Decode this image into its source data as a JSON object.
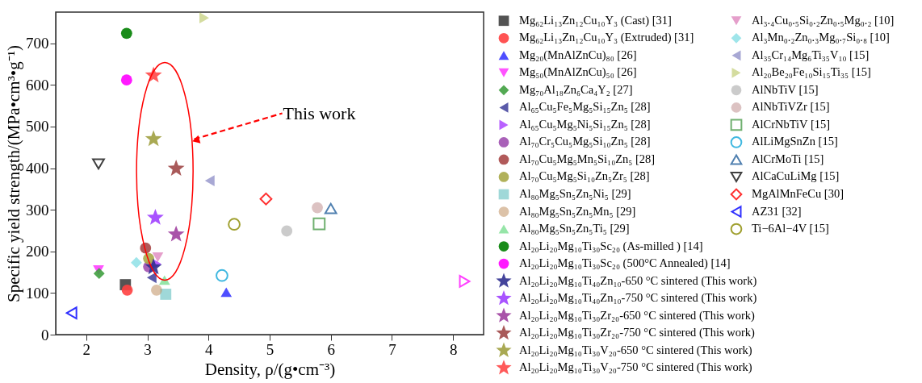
{
  "chart_data": {
    "type": "scatter",
    "xlabel": "Density, ρ/(g•cm⁻³)",
    "ylabel": "Specific yield strength/(MPa•cm³•g⁻¹)",
    "xlim": [
      1.5,
      8.5
    ],
    "ylim": [
      0,
      775
    ],
    "xticks": [
      2,
      3,
      4,
      5,
      6,
      7,
      8
    ],
    "yticks": [
      0,
      100,
      200,
      300,
      400,
      500,
      600,
      700
    ],
    "grid": false,
    "legend": "right",
    "annotations": [
      "This work"
    ],
    "series": [
      {
        "name": "Mg₆₂Li₁₃Zn₁₂Cu₁₀Y₃ (Cast) [31]",
        "color": "#404040",
        "marker": "square",
        "x": [
          2.64
        ],
        "values": [
          120
        ]
      },
      {
        "name": "Mg₆₂Li₁₃Zn₁₂Cu₁₀Y₃ (Extruded) [31]",
        "color": "#ff4040",
        "marker": "circle",
        "x": [
          2.67
        ],
        "values": [
          107
        ]
      },
      {
        "name": "Mg₂₀(MnAlZnCu)₈₀ [26]",
        "color": "#3b3bff",
        "marker": "triangle-up",
        "x": [
          4.29
        ],
        "values": [
          102
        ]
      },
      {
        "name": "Mg₅₀(MnAlZnCu)₅₀ [26]",
        "color": "#ff40ff",
        "marker": "triangle-down",
        "x": [
          2.2
        ],
        "values": [
          155
        ]
      },
      {
        "name": "Mg₇₀Al₁₈Zn₆Ca₄Y₂ [27]",
        "color": "#40a040",
        "marker": "diamond",
        "x": [
          2.21
        ],
        "values": [
          147
        ]
      },
      {
        "name": "Al₆₅Cu₅Fe₅Mg₅Si₁₅Zn₅ [28]",
        "color": "#4848a0",
        "marker": "triangle-left",
        "x": [
          3.07
        ],
        "values": [
          137
        ]
      },
      {
        "name": "Al₆₅Cu₅Mg₅Ni₅Si₁₅Zn₅ [28]",
        "color": "#b050ff",
        "marker": "triangle-right",
        "x": [
          3.15
        ],
        "values": [
          170
        ]
      },
      {
        "name": "Al₇₀Cr₅Cu₅Mg₅Si₁₀Zn₅ [28]",
        "color": "#a050b0",
        "marker": "circle",
        "x": [
          3.02
        ],
        "values": [
          163
        ]
      },
      {
        "name": "Al₇₀Cu₅Mg₅Mn₅Si₁₀Zn₅ [28]",
        "color": "#a84848",
        "marker": "circle",
        "x": [
          2.97
        ],
        "values": [
          208
        ]
      },
      {
        "name": "Al₇₀Cu₅Mg₅Si₁₀Zn₅Zr₅ [28]",
        "color": "#a8a848",
        "marker": "circle",
        "x": [
          3.02
        ],
        "values": [
          183
        ]
      },
      {
        "name": "Al₈₀Mg₅Sn₅Zn₅Ni₅ [29]",
        "color": "#50b8b8",
        "marker": "square half",
        "x": [
          3.3
        ],
        "values": [
          97
        ]
      },
      {
        "name": "Al₈₀Mg₅Sn₅Zn₅Mn₅ [29]",
        "color": "#c09060",
        "marker": "circle half",
        "x": [
          3.15
        ],
        "values": [
          107
        ]
      },
      {
        "name": "Al₈₀Mg₅Sn₅Zn₅Ti₅ [29]",
        "color": "#40d060",
        "marker": "triangle-up half",
        "x": [
          3.28
        ],
        "values": [
          131
        ]
      },
      {
        "name": "Al₂₀Li₂₀Mg₁₀Ti₃₀Sc₂₀ (As-milled ) [14]",
        "color": "#008000",
        "marker": "circle",
        "x": [
          2.66
        ],
        "values": [
          724
        ]
      },
      {
        "name": "Al₂₀Li₂₀Mg₁₀Ti₃₀Sc₂₀ (500°C Annealed) [14]",
        "color": "#ff00ff",
        "marker": "circle",
        "x": [
          2.66
        ],
        "values": [
          612
        ]
      },
      {
        "name": "Al₂₀Li₂₀Mg₁₀Ti₄₀Zn₁₀-650  °C sintered (This work)",
        "color": "#303090",
        "marker": "star",
        "x": [
          3.1
        ],
        "values": [
          162
        ]
      },
      {
        "name": "Al₂₀Li₂₀Mg₁₀Ti₄₀Zn₁₀-750  °C sintered (This work)",
        "color": "#a040ff",
        "marker": "star",
        "x": [
          3.13
        ],
        "values": [
          281
        ]
      },
      {
        "name": "Al₂₀Li₂₀Mg₁₀Ti₃₀Zr₂₀-650  °C sintered (This work)",
        "color": "#a040a0",
        "marker": "star",
        "x": [
          3.47
        ],
        "values": [
          241
        ]
      },
      {
        "name": "Al₂₀Li₂₀Mg₁₀Ti₃₀Zr₂₀-750  °C sintered (This work)",
        "color": "#a04848",
        "marker": "star",
        "x": [
          3.47
        ],
        "values": [
          399
        ]
      },
      {
        "name": "Al₂₀Li₂₀Mg₁₀Ti₃₀V₂₀-650  °C  sintered (This work)",
        "color": "#a0a040",
        "marker": "star",
        "x": [
          3.1
        ],
        "values": [
          470
        ]
      },
      {
        "name": "Al₂₀Li₂₀Mg₁₀Ti₃₀V₂₀-750  °C  sintered (This work)",
        "color": "#ff4848",
        "marker": "star",
        "x": [
          3.1
        ],
        "values": [
          623
        ]
      },
      {
        "name": "Al₃.₄Cu₀.₅Si₀.₂Zn₀.₅Mg₀.₂ [10]",
        "color": "#d050a0",
        "marker": "triangle-down half",
        "x": [
          3.17
        ],
        "values": [
          186
        ]
      },
      {
        "name": "Al₃Mn₀.₂Zn₀.₃Mg₀.₇Si₀.₈ [10]",
        "color": "#50d0d8",
        "marker": "diamond half",
        "x": [
          2.82
        ],
        "values": [
          173
        ]
      },
      {
        "name": "Al₃₅Cr₁₄Mg₆Ti₃₅V₁₀ [15]",
        "color": "#6060b0",
        "marker": "triangle-left half",
        "x": [
          4.02
        ],
        "values": [
          370
        ]
      },
      {
        "name": "Al₂₀Be₂₀Fe₁₀Si₁₅Ti₃₅ [15]",
        "color": "#b0c050",
        "marker": "triangle-right half",
        "x": [
          3.93
        ],
        "values": [
          761
        ]
      },
      {
        "name": "AlNbTiV [15]",
        "color": "#a0a0a0",
        "marker": "circle half",
        "x": [
          5.28
        ],
        "values": [
          249
        ]
      },
      {
        "name": "AlNbTiVZr [15]",
        "color": "#c09090",
        "marker": "circle half",
        "x": [
          5.78
        ],
        "values": [
          305
        ]
      },
      {
        "name": "AlCrNbTiV [15]",
        "color": "#70b070",
        "marker": "square open",
        "x": [
          5.81
        ],
        "values": [
          266
        ]
      },
      {
        "name": "AlLiMgSnZn [15]",
        "color": "#40b8e0",
        "marker": "circle open",
        "x": [
          4.22
        ],
        "values": [
          142
        ]
      },
      {
        "name": "AlCrMoTi [15]",
        "color": "#5080b0",
        "marker": "triangle-up open",
        "x": [
          6.0
        ],
        "values": [
          303
        ]
      },
      {
        "name": "AlCaCuLiMg [15]",
        "color": "#404040",
        "marker": "triangle-down open",
        "x": [
          2.2
        ],
        "values": [
          410
        ]
      },
      {
        "name": "MgAlMnFeCu [30]",
        "color": "#ff3030",
        "marker": "diamond open",
        "x": [
          4.94
        ],
        "values": [
          326
        ]
      },
      {
        "name": "AZ31 [32]",
        "color": "#3030ff",
        "marker": "triangle-left open",
        "x": [
          1.76
        ],
        "values": [
          52
        ]
      },
      {
        "color": "#ff40ff",
        "marker": "triangle-right open",
        "x": [
          8.19
        ],
        "values": [
          128
        ]
      },
      {
        "name": "Ti−6Al−4V [15]",
        "color": "#a0a030",
        "marker": "circle open",
        "x": [
          4.42
        ],
        "values": [
          265
        ]
      }
    ]
  }
}
